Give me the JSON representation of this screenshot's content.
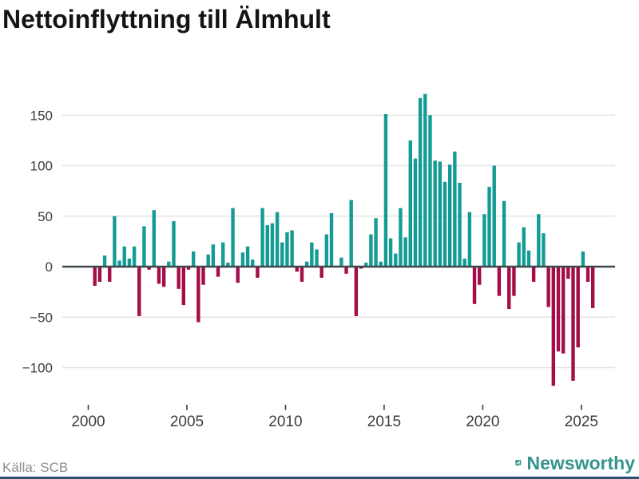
{
  "title": "Nettoinflyttning till Älmhult",
  "source": "Källa: SCB",
  "branding": {
    "logo_text": "Newsworthy",
    "logo_icon": "bar-chart-speech-bubble-icon",
    "logo_color": "#36948d"
  },
  "colors": {
    "background": "#ffffff",
    "positive_bar": "#149c94",
    "negative_bar": "#a50d49",
    "grid_line": "#e4e4e4",
    "zero_line": "#3f474b",
    "tick_text": "#3d3d3d",
    "title_text": "#141414",
    "source_text": "#8d8d8d",
    "bottom_strip": "#2e4d71"
  },
  "chart_data": {
    "type": "bar",
    "title": "Nettoinflyttning till Älmhult",
    "source_label": "Källa: SCB",
    "xlabel": "",
    "ylabel": "",
    "grid": true,
    "legend": false,
    "ylim": [
      -125,
      180
    ],
    "y_ticks": [
      150,
      100,
      50,
      0,
      -50,
      -100
    ],
    "y_tick_labels": [
      "150",
      "100",
      "50",
      "0",
      "−50",
      "−100"
    ],
    "x_ticks": [
      2000,
      2005,
      2010,
      2015,
      2020,
      2025
    ],
    "x_tick_labels": [
      "2000",
      "2005",
      "2010",
      "2015",
      "2020",
      "2025"
    ],
    "x": [
      "2000Q2",
      "2000Q3",
      "2000Q4",
      "2001Q1",
      "2001Q2",
      "2001Q3",
      "2001Q4",
      "2002Q1",
      "2002Q2",
      "2002Q3",
      "2002Q4",
      "2003Q1",
      "2003Q2",
      "2003Q3",
      "2003Q4",
      "2004Q1",
      "2004Q2",
      "2004Q3",
      "2004Q4",
      "2005Q1",
      "2005Q2",
      "2005Q3",
      "2005Q4",
      "2006Q1",
      "2006Q2",
      "2006Q3",
      "2006Q4",
      "2007Q1",
      "2007Q2",
      "2007Q3",
      "2007Q4",
      "2008Q1",
      "2008Q2",
      "2008Q3",
      "2008Q4",
      "2009Q1",
      "2009Q2",
      "2009Q3",
      "2009Q4",
      "2010Q1",
      "2010Q2",
      "2010Q3",
      "2010Q4",
      "2011Q1",
      "2011Q2",
      "2011Q3",
      "2011Q4",
      "2012Q1",
      "2012Q2",
      "2012Q3",
      "2012Q4",
      "2013Q1",
      "2013Q2",
      "2013Q3",
      "2013Q4",
      "2014Q1",
      "2014Q2",
      "2014Q3",
      "2014Q4",
      "2015Q1",
      "2015Q2",
      "2015Q3",
      "2015Q4",
      "2016Q1",
      "2016Q2",
      "2016Q3",
      "2016Q4",
      "2017Q1",
      "2017Q2",
      "2017Q3",
      "2017Q4",
      "2018Q1",
      "2018Q2",
      "2018Q3",
      "2018Q4",
      "2019Q1",
      "2019Q2",
      "2019Q3",
      "2019Q4",
      "2020Q1",
      "2020Q2",
      "2020Q3",
      "2020Q4",
      "2021Q1",
      "2021Q2",
      "2021Q3",
      "2021Q4",
      "2022Q1",
      "2022Q2",
      "2022Q3",
      "2022Q4",
      "2023Q1",
      "2023Q2",
      "2023Q3",
      "2023Q4",
      "2024Q1",
      "2024Q2",
      "2024Q3",
      "2024Q4",
      "2025Q1",
      "2025Q2",
      "2025Q3"
    ],
    "values": [
      -19,
      -15,
      11,
      -15,
      50,
      6,
      20,
      8,
      20,
      -49,
      40,
      -3,
      56,
      -17,
      -20,
      5,
      45,
      -22,
      -38,
      -3,
      15,
      -55,
      -18,
      12,
      22,
      -10,
      24,
      4,
      58,
      -16,
      14,
      20,
      7,
      -11,
      58,
      41,
      43,
      54,
      24,
      34,
      36,
      -5,
      -15,
      5,
      24,
      17,
      -11,
      32,
      53,
      1,
      9,
      -7,
      66,
      -49,
      -2,
      4,
      32,
      48,
      5,
      151,
      28,
      13,
      58,
      29,
      125,
      107,
      167,
      171,
      150,
      105,
      104,
      84,
      101,
      114,
      83,
      8,
      54,
      -37,
      -18,
      52,
      79,
      100,
      -29,
      65,
      -42,
      -29,
      24,
      39,
      16,
      -15,
      52,
      33,
      -40,
      -118,
      -84,
      -86,
      -12,
      -113,
      -80,
      15,
      -15,
      -41
    ]
  }
}
